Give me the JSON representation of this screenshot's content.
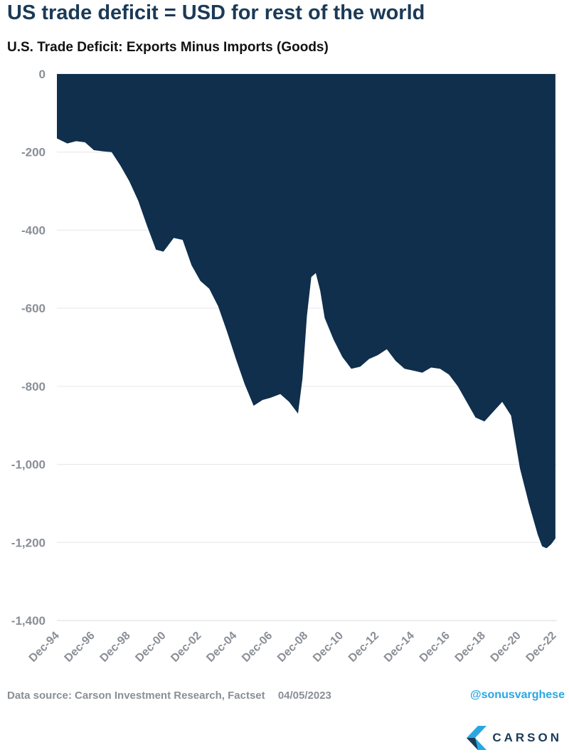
{
  "headline": "US trade deficit = USD for rest of the world",
  "footer": {
    "source": "Data source: Carson Investment Research, Factset",
    "date": "04/05/2023",
    "handle": "@sonusvarghese",
    "brand": "CARSON"
  },
  "colors": {
    "area_fill": "#0f2f4c",
    "headline": "#1b3a57",
    "handle": "#2aa7e0",
    "axis_text": "#8a8f96",
    "gridline": "#e6e6e6"
  },
  "chart_data": {
    "type": "area",
    "title": "U.S. Trade Deficit: Exports Minus Imports (Goods)",
    "xlabel": "",
    "ylabel": "",
    "ylim": [
      -1400,
      0
    ],
    "yticks": [
      0,
      -200,
      -400,
      -600,
      -800,
      -1000,
      -1200,
      -1400
    ],
    "ytick_labels": [
      "0",
      "-200",
      "-400",
      "-600",
      "-800",
      "-1,000",
      "-1,200",
      "-1,400"
    ],
    "xlim": [
      1994.917,
      2023.083
    ],
    "xticks": [
      1994.917,
      1996.917,
      1998.917,
      2000.917,
      2002.917,
      2004.917,
      2006.917,
      2008.917,
      2010.917,
      2012.917,
      2014.917,
      2016.917,
      2018.917,
      2020.917,
      2022.917
    ],
    "xtick_labels": [
      "Dec-94",
      "Dec-96",
      "Dec-98",
      "Dec-00",
      "Dec-02",
      "Dec-04",
      "Dec-06",
      "Dec-08",
      "Dec-10",
      "Dec-12",
      "Dec-14",
      "Dec-16",
      "Dec-18",
      "Dec-20",
      "Dec-22"
    ],
    "grid": "horizontal",
    "legend": "none",
    "x": [
      1994.917,
      1995.5,
      1996.0,
      1996.5,
      1997.0,
      1997.5,
      1998.0,
      1998.5,
      1999.0,
      1999.5,
      2000.0,
      2000.5,
      2000.917,
      2001.5,
      2002.0,
      2002.5,
      2003.0,
      2003.5,
      2004.0,
      2004.5,
      2005.0,
      2005.5,
      2006.0,
      2006.5,
      2006.917,
      2007.5,
      2008.0,
      2008.5,
      2008.75,
      2009.0,
      2009.25,
      2009.5,
      2009.75,
      2010.0,
      2010.5,
      2011.0,
      2011.5,
      2012.0,
      2012.5,
      2013.0,
      2013.5,
      2014.0,
      2014.5,
      2015.0,
      2015.5,
      2016.0,
      2016.5,
      2017.0,
      2017.5,
      2018.0,
      2018.5,
      2019.0,
      2019.5,
      2020.0,
      2020.5,
      2021.0,
      2021.5,
      2022.0,
      2022.25,
      2022.5,
      2022.75,
      2023.0
    ],
    "series": [
      {
        "values": [
          -165,
          -178,
          -172,
          -175,
          -195,
          -198,
          -200,
          -235,
          -275,
          -325,
          -390,
          -450,
          -455,
          -420,
          -425,
          -490,
          -530,
          -550,
          -595,
          -660,
          -730,
          -795,
          -850,
          -835,
          -830,
          -820,
          -840,
          -870,
          -780,
          -620,
          -520,
          -510,
          -555,
          -625,
          -680,
          -725,
          -755,
          -750,
          -730,
          -720,
          -705,
          -735,
          -755,
          -760,
          -765,
          -752,
          -755,
          -770,
          -800,
          -840,
          -880,
          -890,
          -865,
          -840,
          -875,
          -1010,
          -1100,
          -1180,
          -1210,
          -1215,
          -1205,
          -1190
        ]
      }
    ]
  }
}
